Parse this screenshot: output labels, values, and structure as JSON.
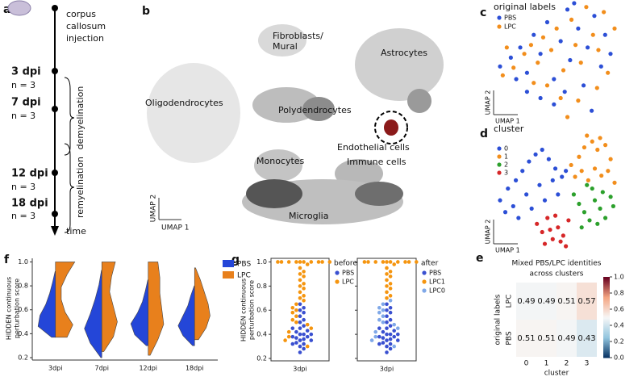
{
  "panel_a": {
    "letter": "a",
    "event": [
      "corpus",
      "callosum",
      "injection"
    ],
    "timepoints": [
      {
        "day": "3 dpi",
        "n": "n = 3"
      },
      {
        "day": "7 dpi",
        "n": "n = 3"
      },
      {
        "day": "12 dpi",
        "n": "n = 3"
      },
      {
        "day": "18 dpi",
        "n": "n = 3"
      }
    ],
    "phases": [
      "demyelination",
      "remyelination"
    ],
    "axis_label": "time"
  },
  "panel_b": {
    "letter": "b",
    "labels": [
      "Fibroblasts/",
      "Mural",
      "Astrocytes",
      "Oligodendrocytes",
      "Polydendrocytes",
      "Endothelial cells",
      "Monocytes",
      "Immune cells",
      "Microglia"
    ],
    "x_label": "UMAP 1",
    "y_label": "UMAP 2"
  },
  "panel_c": {
    "letter": "c",
    "type": "scatter",
    "title": "original labels",
    "x_label": "UMAP 1",
    "y_label": "UMAP 2",
    "series": [
      {
        "name": "PBS",
        "color": "#2c4fd6",
        "x": [
          10,
          18,
          25,
          30,
          35,
          40,
          45,
          50,
          55,
          60,
          62,
          68,
          72,
          75,
          80,
          85,
          88,
          92,
          40,
          50,
          58,
          30,
          22,
          65,
          78
        ],
        "values": [
          45,
          52,
          60,
          40,
          70,
          55,
          80,
          35,
          65,
          90,
          50,
          75,
          30,
          60,
          85,
          45,
          70,
          55,
          20,
          15,
          25,
          25,
          35,
          95,
          10
        ]
      },
      {
        "name": "LPC",
        "color": "#f28e1c",
        "x": [
          12,
          20,
          28,
          33,
          38,
          42,
          48,
          52,
          57,
          63,
          66,
          70,
          74,
          79,
          83,
          87,
          90,
          95,
          45,
          55,
          35,
          68,
          82,
          60,
          15
        ],
        "values": [
          38,
          44,
          55,
          62,
          48,
          68,
          58,
          75,
          42,
          82,
          62,
          48,
          92,
          70,
          58,
          88,
          40,
          75,
          30,
          20,
          32,
          18,
          28,
          5,
          60
        ]
      }
    ]
  },
  "panel_d": {
    "letter": "d",
    "type": "scatter",
    "title": "cluster",
    "x_label": "UMAP 1",
    "y_label": "UMAP 2",
    "series": [
      {
        "name": "0",
        "color": "#2c4fd6",
        "x": [
          8,
          14,
          20,
          25,
          30,
          35,
          40,
          45,
          50,
          55,
          18,
          28,
          38,
          48,
          58,
          22,
          32,
          42,
          52,
          12
        ],
        "values": [
          45,
          55,
          62,
          70,
          78,
          84,
          88,
          80,
          72,
          65,
          40,
          50,
          58,
          62,
          70,
          30,
          38,
          45,
          50,
          35
        ]
      },
      {
        "name": "1",
        "color": "#f28e1c",
        "x": [
          62,
          68,
          72,
          78,
          82,
          88,
          92,
          65,
          70,
          75,
          80,
          85,
          90,
          95,
          74,
          84
        ],
        "values": [
          75,
          82,
          90,
          95,
          88,
          92,
          80,
          65,
          70,
          62,
          72,
          66,
          70,
          60,
          100,
          98
        ]
      },
      {
        "name": "2",
        "color": "#2ca02c",
        "x": [
          64,
          68,
          72,
          76,
          80,
          84,
          88,
          92,
          70,
          78,
          86,
          94,
          74,
          82
        ],
        "values": [
          50,
          42,
          35,
          28,
          45,
          38,
          30,
          48,
          22,
          55,
          52,
          40,
          58,
          25
        ]
      },
      {
        "name": "3",
        "color": "#d62728",
        "x": [
          36,
          40,
          44,
          48,
          52,
          56,
          60,
          42,
          50,
          58,
          46,
          54
        ],
        "values": [
          25,
          18,
          30,
          12,
          22,
          15,
          28,
          8,
          32,
          6,
          20,
          10
        ]
      }
    ]
  },
  "panel_e": {
    "letter": "e",
    "type": "heatmap",
    "title": [
      "Mixed PBS/LPC identities",
      "across clusters"
    ],
    "rows": [
      "LPC",
      "PBS"
    ],
    "columns": [
      "0",
      "1",
      "2",
      "3"
    ],
    "values": [
      [
        0.49,
        0.49,
        0.51,
        0.57
      ],
      [
        0.51,
        0.51,
        0.49,
        0.43
      ]
    ],
    "x_label": "cluster",
    "y_label": "original labels",
    "clim": [
      0,
      1
    ],
    "cticks": [
      {
        "value": 0,
        "label": "0.0"
      },
      {
        "value": 0.2,
        "label": "0.2"
      },
      {
        "value": 0.4,
        "label": "0.4"
      },
      {
        "value": 0.6,
        "label": "0.6"
      },
      {
        "value": 0.8,
        "label": "0.8"
      },
      {
        "value": 1,
        "label": "1.0"
      }
    ]
  },
  "panel_f": {
    "letter": "f",
    "type": "violin",
    "y_label": [
      "HIDDEN continuous",
      "perturbation score"
    ],
    "categories": [
      "3dpi",
      "7dpi",
      "12dpi",
      "18dpi"
    ],
    "ylim": [
      0.18,
      1.03
    ],
    "yticks": [
      0.2,
      0.4,
      0.6,
      0.8,
      {
        "value": 1,
        "label": "1.0"
      }
    ],
    "series": [
      {
        "name": "PBS",
        "color": "#2446d8",
        "violins": [
          {
            "min": 0.37,
            "max": 0.92,
            "density": [
              0.2,
              0.9,
              0.8,
              0.5,
              0.3,
              0.15,
              0.02
            ]
          },
          {
            "min": 0.2,
            "max": 0.93,
            "density": [
              0.05,
              0.6,
              0.9,
              0.6,
              0.35,
              0.15,
              0.02
            ]
          },
          {
            "min": 0.3,
            "max": 0.85,
            "density": [
              0.1,
              0.7,
              0.9,
              0.55,
              0.3,
              0.15,
              0.02
            ]
          },
          {
            "min": 0.3,
            "max": 0.8,
            "density": [
              0.1,
              0.6,
              0.85,
              0.6,
              0.35,
              0.2,
              0.02
            ]
          }
        ]
      },
      {
        "name": "LPC",
        "color": "#e8801c",
        "violins": [
          {
            "min": 0.37,
            "max": 1.0,
            "density": [
              0.6,
              0.9,
              0.5,
              0.3,
              0.3,
              0.6,
              1.0
            ]
          },
          {
            "min": 0.25,
            "max": 1.0,
            "density": [
              0.1,
              0.6,
              0.8,
              0.6,
              0.4,
              0.5,
              0.7
            ]
          },
          {
            "min": 0.22,
            "max": 1.0,
            "density": [
              0.1,
              0.5,
              0.8,
              0.7,
              0.6,
              0.6,
              0.5
            ]
          },
          {
            "min": 0.35,
            "max": 0.95,
            "density": [
              0.2,
              0.6,
              0.8,
              0.7,
              0.5,
              0.3,
              0.05
            ]
          }
        ]
      }
    ]
  },
  "panel_g": {
    "letter": "g",
    "type": "swarm",
    "y_label": [
      "HIDDEN continuous",
      "perturbation score"
    ],
    "ylim": [
      0.18,
      1.03
    ],
    "yticks": [
      0.2,
      0.4,
      0.6,
      0.8,
      {
        "value": 1,
        "label": "1.0"
      }
    ],
    "plots": [
      {
        "legend_title": "before",
        "category": "3dpi",
        "series": [
          {
            "name": "PBS",
            "color": "#3a50d0",
            "values": [
              0.25,
              0.28,
              0.3,
              0.32,
              0.33,
              0.35,
              0.36,
              0.37,
              0.38,
              0.38,
              0.4,
              0.4,
              0.42,
              0.43,
              0.45,
              0.47,
              0.5,
              0.52,
              0.55,
              0.58,
              0.6,
              0.62,
              0.65,
              0.4,
              0.35,
              0.32,
              0.45
            ]
          },
          {
            "name": "LPC",
            "color": "#f5950f",
            "values": [
              1,
              1,
              1,
              1,
              1,
              1,
              1,
              1,
              1,
              1,
              0.98,
              0.95,
              0.92,
              0.9,
              0.88,
              0.85,
              0.82,
              0.8,
              0.78,
              0.75,
              0.72,
              0.7,
              0.68,
              0.65,
              0.62,
              0.6,
              0.58,
              0.55,
              0.52,
              0.5,
              0.48,
              0.45,
              0.42,
              0.38,
              0.35,
              0.3
            ]
          }
        ]
      },
      {
        "legend_title": "after",
        "category": "3dpi",
        "series": [
          {
            "name": "PBS",
            "color": "#3a50d0",
            "values": [
              0.25,
              0.28,
              0.3,
              0.32,
              0.33,
              0.35,
              0.36,
              0.37,
              0.38,
              0.38,
              0.4,
              0.4,
              0.42,
              0.43,
              0.45,
              0.47,
              0.5,
              0.52,
              0.55,
              0.58,
              0.6,
              0.62,
              0.65,
              0.4,
              0.35,
              0.32,
              0.45
            ]
          },
          {
            "name": "LPC1",
            "color": "#f5950f",
            "values": [
              1,
              1,
              1,
              1,
              1,
              1,
              1,
              1,
              1,
              1,
              0.98,
              0.95,
              0.92,
              0.9,
              0.88,
              0.85,
              0.82,
              0.8,
              0.78,
              0.75,
              0.72,
              0.7
            ]
          },
          {
            "name": "LPC0",
            "color": "#7fa8e8",
            "values": [
              0.68,
              0.65,
              0.62,
              0.6,
              0.58,
              0.55,
              0.52,
              0.5,
              0.48,
              0.45,
              0.42,
              0.38,
              0.35,
              0.3
            ]
          }
        ]
      }
    ]
  }
}
